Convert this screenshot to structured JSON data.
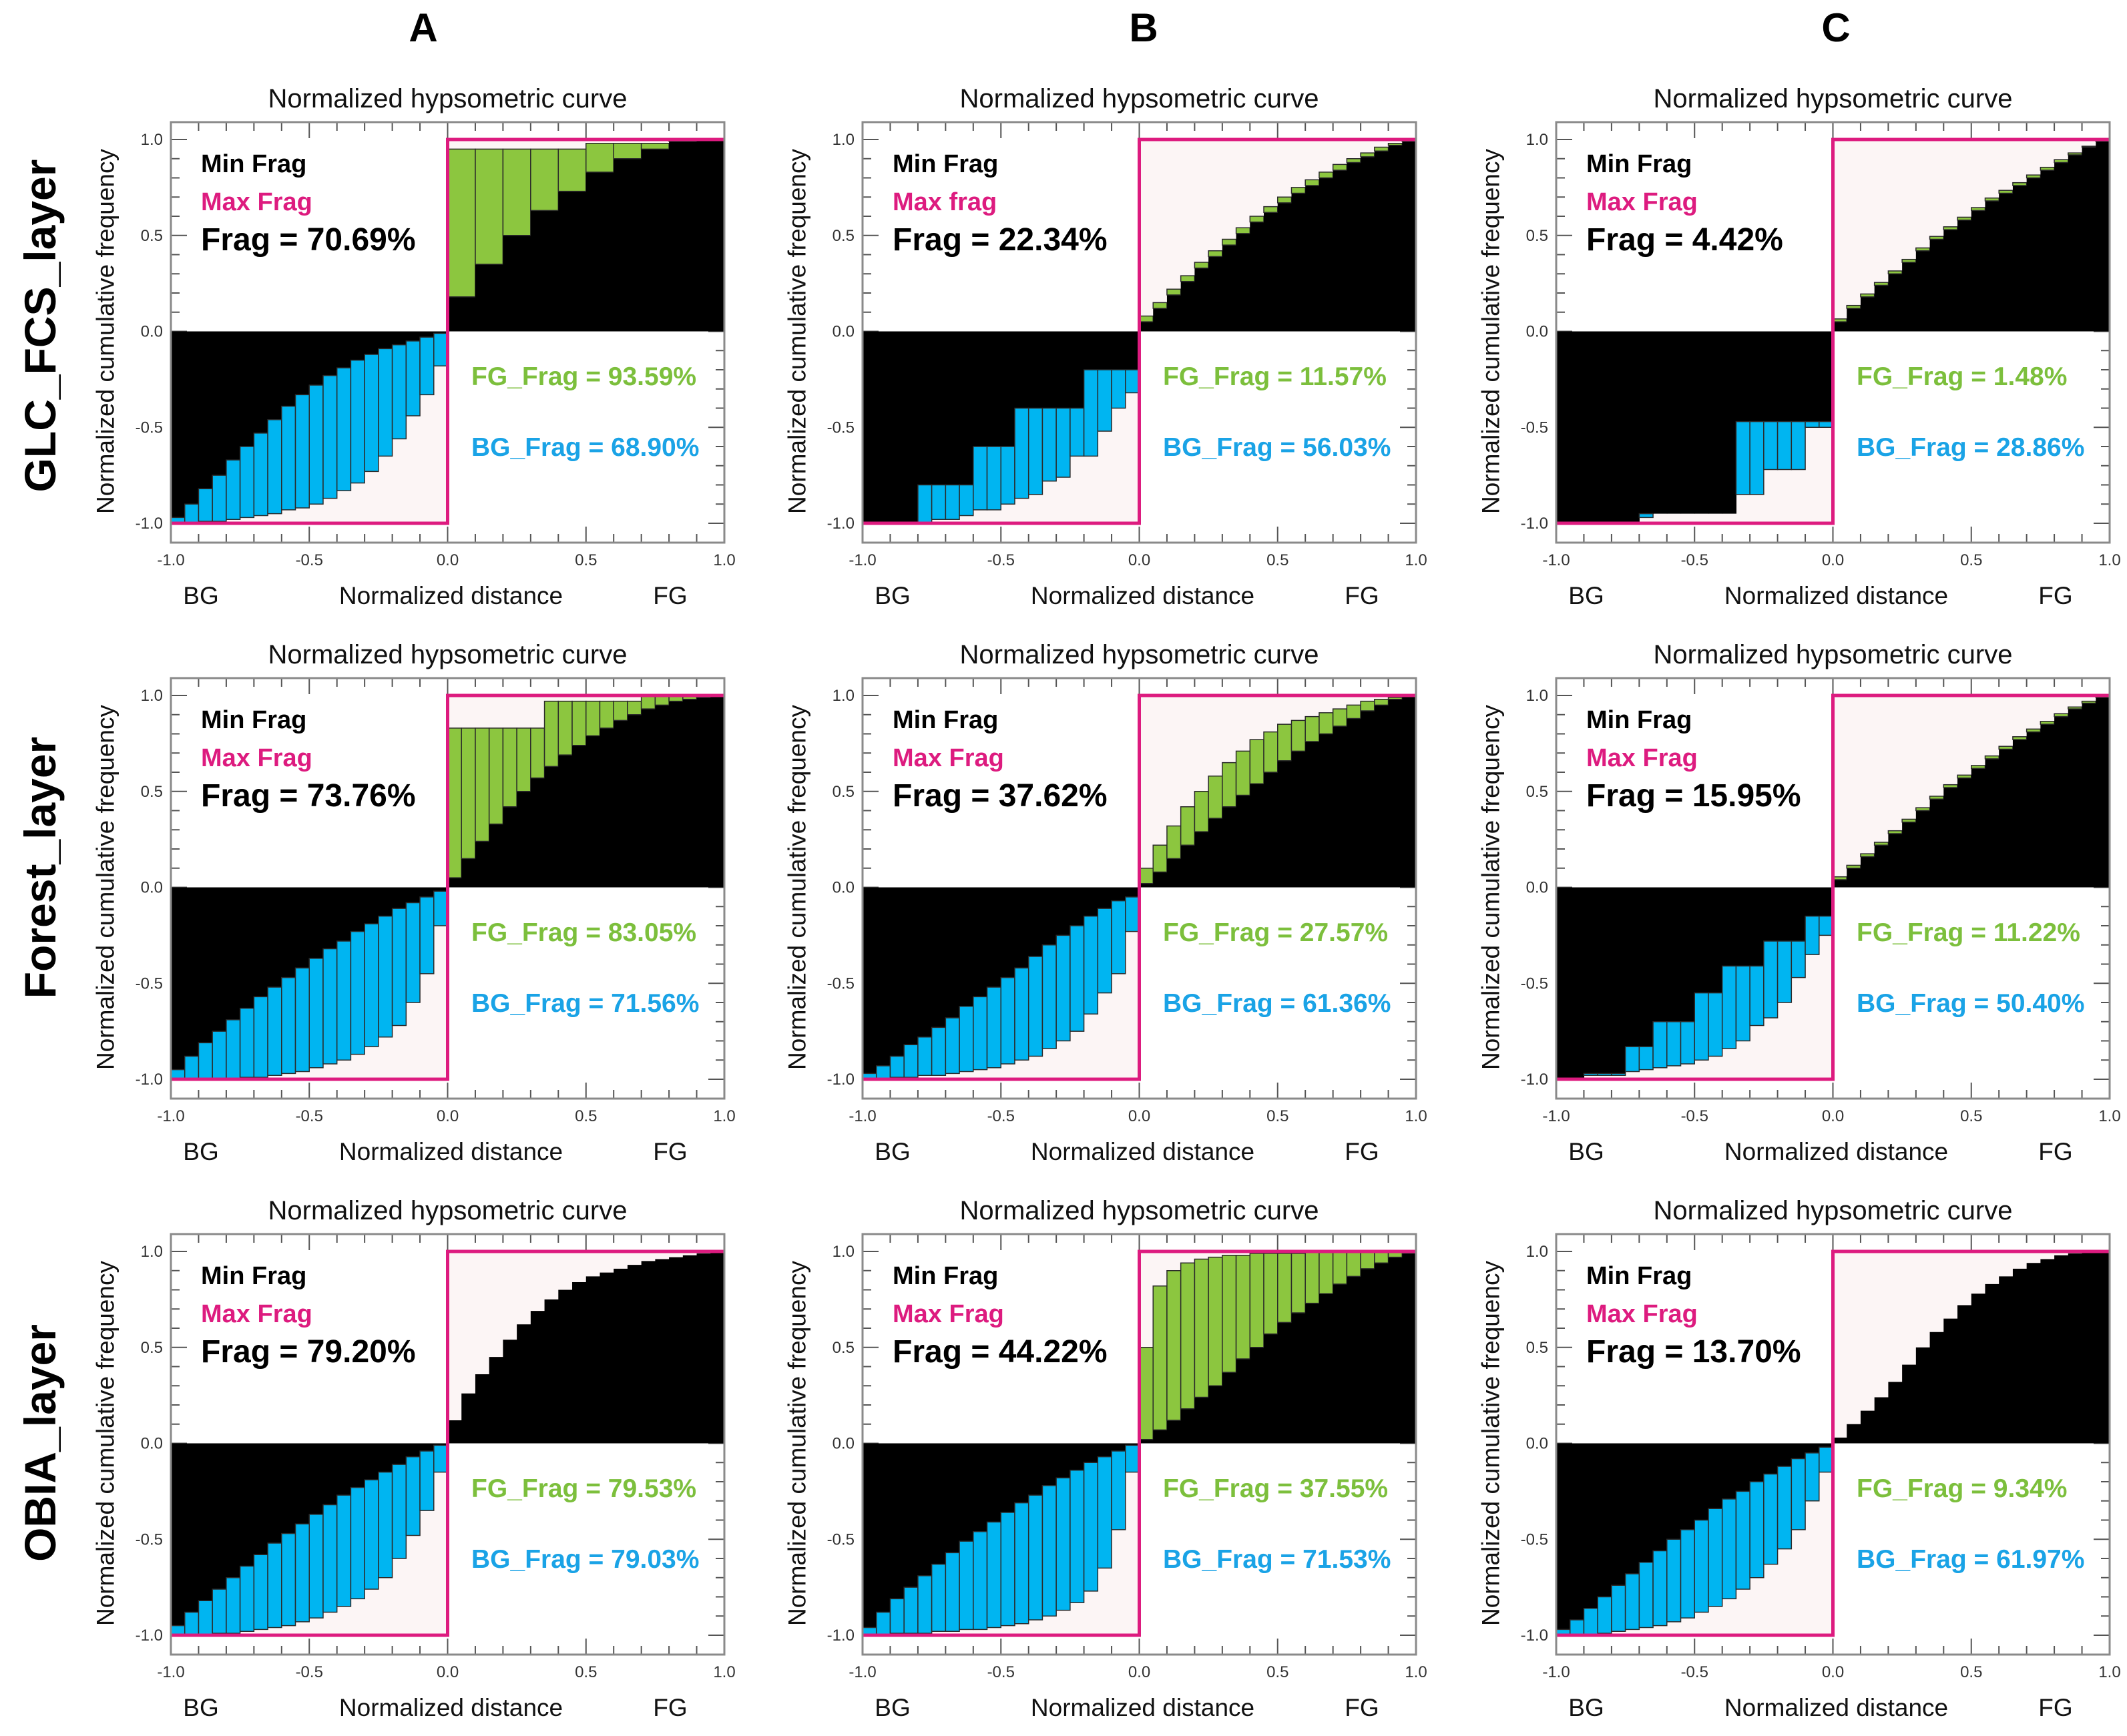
{
  "columns": [
    "A",
    "B",
    "C"
  ],
  "rows": [
    "GLC_FCS_layer",
    "Forest_layer",
    "OBIA_layer"
  ],
  "colors": {
    "fg_frag": "#8cc63f",
    "bg_frag": "#00b5f1",
    "max_frag": "#dd1b7f",
    "min_frag": "#000000",
    "fg_text": "#7cbf3c",
    "bg_text": "#1aa3e6",
    "gap": "#fcf5f5"
  },
  "chart_data": [
    {
      "type": "bar",
      "row": 0,
      "column": 0,
      "title": "Normalized hypsometric curve",
      "xlabel": "Normalized distance",
      "ylabel": "Normalized cumulative frequency",
      "x_end_labels": [
        "BG",
        "FG"
      ],
      "xlim": [
        -1,
        1
      ],
      "ylim": [
        -1,
        1
      ],
      "xticks": [
        "-1.0",
        "-0.5",
        "0.0",
        "0.5",
        "1.0"
      ],
      "yticks": [
        "-1.0",
        "-0.5",
        "0.0",
        "0.5",
        "1.0"
      ],
      "legend": {
        "min": "Min Frag",
        "max": "Max Frag"
      },
      "frag": "Frag = 70.69%",
      "fg_frag": "FG_Frag = 93.59%",
      "bg_frag": "BG_Frag = 68.90%",
      "fg": {
        "ref": [
          0.18,
          0.35,
          0.5,
          0.63,
          0.73,
          0.83,
          0.9,
          0.95,
          0.99,
          1
        ],
        "obs": [
          0.95,
          0.95,
          0.95,
          0.95,
          0.95,
          0.98,
          0.98,
          0.98,
          1,
          1
        ]
      },
      "bg": {
        "ref": [
          -0.97,
          -0.9,
          -0.82,
          -0.75,
          -0.67,
          -0.6,
          -0.53,
          -0.46,
          -0.39,
          -0.33,
          -0.28,
          -0.23,
          -0.19,
          -0.15,
          -0.12,
          -0.09,
          -0.07,
          -0.05,
          -0.03,
          -0.01
        ],
        "obs": [
          -1,
          -1,
          -0.99,
          -0.99,
          -0.98,
          -0.97,
          -0.96,
          -0.95,
          -0.93,
          -0.92,
          -0.9,
          -0.87,
          -0.83,
          -0.79,
          -0.73,
          -0.65,
          -0.56,
          -0.44,
          -0.33,
          -0.18
        ]
      }
    },
    {
      "type": "bar",
      "row": 0,
      "column": 1,
      "title": "Normalized hypsometric curve",
      "xlabel": "Normalized distance",
      "ylabel": "Normalized cumulative frequency",
      "x_end_labels": [
        "BG",
        "FG"
      ],
      "xlim": [
        -1,
        1
      ],
      "ylim": [
        -1,
        1
      ],
      "xticks": [
        "-1.0",
        "-0.5",
        "0.0",
        "0.5",
        "1.0"
      ],
      "yticks": [
        "-1.0",
        "-0.5",
        "0.0",
        "0.5",
        "1.0"
      ],
      "legend": {
        "min": "Min Frag",
        "max": "Max frag"
      },
      "frag": "Frag = 22.34%",
      "fg_frag": "FG_Frag = 11.57%",
      "bg_frag": "BG_Frag = 56.03%",
      "fg": {
        "ref": [
          0.05,
          0.12,
          0.19,
          0.26,
          0.33,
          0.39,
          0.45,
          0.51,
          0.57,
          0.62,
          0.67,
          0.72,
          0.76,
          0.8,
          0.84,
          0.88,
          0.91,
          0.94,
          0.97,
          0.99
        ],
        "obs": [
          0.08,
          0.15,
          0.22,
          0.29,
          0.36,
          0.42,
          0.48,
          0.54,
          0.6,
          0.65,
          0.7,
          0.75,
          0.79,
          0.83,
          0.87,
          0.9,
          0.93,
          0.96,
          0.98,
          1
        ]
      },
      "bg": {
        "ref": [
          -1,
          -1,
          -1,
          -1,
          -0.8,
          -0.8,
          -0.8,
          -0.8,
          -0.6,
          -0.6,
          -0.6,
          -0.4,
          -0.4,
          -0.4,
          -0.4,
          -0.4,
          -0.2,
          -0.2,
          -0.2,
          -0.2
        ],
        "obs": [
          -1,
          -1,
          -1,
          -1,
          -1,
          -0.98,
          -0.98,
          -0.96,
          -0.93,
          -0.93,
          -0.9,
          -0.87,
          -0.85,
          -0.78,
          -0.76,
          -0.65,
          -0.65,
          -0.52,
          -0.4,
          -0.32
        ]
      }
    },
    {
      "type": "bar",
      "row": 0,
      "column": 2,
      "title": "Normalized hypsometric curve",
      "xlabel": "Normalized distance",
      "ylabel": "Normalized cumulative frequency",
      "x_end_labels": [
        "BG",
        "FG"
      ],
      "xlim": [
        -1,
        1
      ],
      "ylim": [
        -1,
        1
      ],
      "xticks": [
        "-1.0",
        "-0.5",
        "0.0",
        "0.5",
        "1.0"
      ],
      "yticks": [
        "-1.0",
        "-0.5",
        "0.0",
        "0.5",
        "1.0"
      ],
      "legend": {
        "min": "Min Frag",
        "max": "Max Frag"
      },
      "frag": "Frag = 4.42%",
      "fg_frag": "FG_Frag = 1.48%",
      "bg_frag": "BG_Frag = 28.86%",
      "fg": {
        "ref": [
          0.05,
          0.12,
          0.18,
          0.24,
          0.3,
          0.36,
          0.42,
          0.48,
          0.53,
          0.58,
          0.63,
          0.68,
          0.72,
          0.76,
          0.8,
          0.84,
          0.88,
          0.92,
          0.96,
          0.99
        ],
        "obs": [
          0.065,
          0.135,
          0.195,
          0.255,
          0.315,
          0.375,
          0.435,
          0.495,
          0.545,
          0.595,
          0.645,
          0.695,
          0.735,
          0.775,
          0.815,
          0.855,
          0.895,
          0.93,
          0.965,
          1
        ]
      },
      "bg": {
        "ref": [
          -1,
          -1,
          -1,
          -1,
          -1,
          -1,
          -0.95,
          -0.95,
          -0.95,
          -0.95,
          -0.95,
          -0.95,
          -0.95,
          -0.47,
          -0.47,
          -0.47,
          -0.47,
          -0.47,
          -0.47,
          -0.47
        ],
        "obs": [
          -1,
          -1,
          -1,
          -1,
          -1,
          -1,
          -0.97,
          -0.95,
          -0.95,
          -0.95,
          -0.95,
          -0.95,
          -0.95,
          -0.85,
          -0.85,
          -0.72,
          -0.72,
          -0.72,
          -0.5,
          -0.5
        ]
      }
    },
    {
      "type": "bar",
      "row": 1,
      "column": 0,
      "title": "Normalized hypsometric curve",
      "xlabel": "Normalized distance",
      "ylabel": "Normalized cumulative frequency",
      "x_end_labels": [
        "BG",
        "FG"
      ],
      "xlim": [
        -1,
        1
      ],
      "ylim": [
        -1,
        1
      ],
      "xticks": [
        "-1.0",
        "-0.5",
        "0.0",
        "0.5",
        "1.0"
      ],
      "yticks": [
        "-1.0",
        "-0.5",
        "0.0",
        "0.5",
        "1.0"
      ],
      "legend": {
        "min": "Min Frag",
        "max": "Max Frag"
      },
      "frag": "Frag = 73.76%",
      "fg_frag": "FG_Frag = 83.05%",
      "bg_frag": "BG_Frag = 71.56%",
      "fg": {
        "ref": [
          0.05,
          0.15,
          0.24,
          0.33,
          0.42,
          0.5,
          0.57,
          0.63,
          0.69,
          0.74,
          0.79,
          0.83,
          0.87,
          0.9,
          0.93,
          0.95,
          0.97,
          0.98,
          0.99,
          1
        ],
        "obs": [
          0.83,
          0.83,
          0.83,
          0.83,
          0.83,
          0.83,
          0.83,
          0.97,
          0.97,
          0.97,
          0.97,
          0.97,
          0.97,
          0.97,
          1,
          1,
          1,
          1,
          1,
          1
        ]
      },
      "bg": {
        "ref": [
          -0.95,
          -0.88,
          -0.81,
          -0.75,
          -0.69,
          -0.63,
          -0.57,
          -0.52,
          -0.47,
          -0.42,
          -0.37,
          -0.32,
          -0.28,
          -0.23,
          -0.19,
          -0.15,
          -0.11,
          -0.08,
          -0.05,
          -0.02
        ],
        "obs": [
          -1,
          -1,
          -1,
          -1,
          -1,
          -0.99,
          -0.99,
          -0.98,
          -0.97,
          -0.96,
          -0.94,
          -0.92,
          -0.9,
          -0.87,
          -0.83,
          -0.78,
          -0.72,
          -0.6,
          -0.45,
          -0.2
        ]
      }
    },
    {
      "type": "bar",
      "row": 1,
      "column": 1,
      "title": "Normalized hypsometric curve",
      "xlabel": "Normalized distance",
      "ylabel": "Normalized cumulative frequency",
      "x_end_labels": [
        "BG",
        "FG"
      ],
      "xlim": [
        -1,
        1
      ],
      "ylim": [
        -1,
        1
      ],
      "xticks": [
        "-1.0",
        "-0.5",
        "0.0",
        "0.5",
        "1.0"
      ],
      "yticks": [
        "-1.0",
        "-0.5",
        "0.0",
        "0.5",
        "1.0"
      ],
      "legend": {
        "min": "Min Frag",
        "max": "Max Frag"
      },
      "frag": "Frag = 37.62%",
      "fg_frag": "FG_Frag = 27.57%",
      "bg_frag": "BG_Frag = 61.36%",
      "fg": {
        "ref": [
          0.02,
          0.08,
          0.15,
          0.22,
          0.29,
          0.36,
          0.42,
          0.48,
          0.54,
          0.6,
          0.66,
          0.71,
          0.76,
          0.8,
          0.84,
          0.88,
          0.92,
          0.95,
          0.98,
          1
        ],
        "obs": [
          0.1,
          0.22,
          0.32,
          0.42,
          0.5,
          0.58,
          0.65,
          0.71,
          0.77,
          0.81,
          0.85,
          0.87,
          0.89,
          0.91,
          0.93,
          0.95,
          0.97,
          0.98,
          0.99,
          1
        ]
      },
      "bg": {
        "ref": [
          -0.97,
          -0.93,
          -0.88,
          -0.82,
          -0.78,
          -0.73,
          -0.68,
          -0.62,
          -0.57,
          -0.52,
          -0.47,
          -0.42,
          -0.36,
          -0.3,
          -0.25,
          -0.2,
          -0.15,
          -0.11,
          -0.07,
          -0.05
        ],
        "obs": [
          -1,
          -1,
          -0.99,
          -0.99,
          -0.98,
          -0.98,
          -0.97,
          -0.96,
          -0.95,
          -0.94,
          -0.92,
          -0.9,
          -0.88,
          -0.84,
          -0.8,
          -0.75,
          -0.66,
          -0.55,
          -0.45,
          -0.23
        ]
      }
    },
    {
      "type": "bar",
      "row": 1,
      "column": 2,
      "title": "Normalized hypsometric curve",
      "xlabel": "Normalized distance",
      "ylabel": "Normalized cumulative frequency",
      "x_end_labels": [
        "BG",
        "FG"
      ],
      "xlim": [
        -1,
        1
      ],
      "ylim": [
        -1,
        1
      ],
      "xticks": [
        "-1.0",
        "-0.5",
        "0.0",
        "0.5",
        "1.0"
      ],
      "yticks": [
        "-1.0",
        "-0.5",
        "0.0",
        "0.5",
        "1.0"
      ],
      "legend": {
        "min": "Min Frag",
        "max": "Max Frag"
      },
      "frag": "Frag = 15.95%",
      "fg_frag": "FG_Frag = 11.22%",
      "bg_frag": "BG_Frag = 50.40%",
      "fg": {
        "ref": [
          0.04,
          0.1,
          0.16,
          0.22,
          0.28,
          0.34,
          0.4,
          0.46,
          0.52,
          0.57,
          0.62,
          0.67,
          0.72,
          0.77,
          0.81,
          0.85,
          0.89,
          0.93,
          0.96,
          0.99
        ],
        "obs": [
          0.055,
          0.115,
          0.175,
          0.235,
          0.295,
          0.355,
          0.415,
          0.475,
          0.535,
          0.585,
          0.635,
          0.685,
          0.735,
          0.785,
          0.825,
          0.865,
          0.905,
          0.94,
          0.97,
          1
        ]
      },
      "bg": {
        "ref": [
          -1,
          -1,
          -0.97,
          -0.97,
          -0.97,
          -0.83,
          -0.83,
          -0.7,
          -0.7,
          -0.7,
          -0.55,
          -0.55,
          -0.41,
          -0.41,
          -0.41,
          -0.28,
          -0.28,
          -0.28,
          -0.15,
          -0.15
        ],
        "obs": [
          -1,
          -1,
          -0.98,
          -0.98,
          -0.98,
          -0.96,
          -0.95,
          -0.94,
          -0.93,
          -0.92,
          -0.9,
          -0.88,
          -0.84,
          -0.8,
          -0.72,
          -0.68,
          -0.6,
          -0.47,
          -0.35,
          -0.25
        ]
      }
    },
    {
      "type": "bar",
      "row": 2,
      "column": 0,
      "title": "Normalized hypsometric curve",
      "xlabel": "Normalized distance",
      "ylabel": "Normalized cumulative frequency",
      "x_end_labels": [
        "BG",
        "FG"
      ],
      "xlim": [
        -1,
        1
      ],
      "ylim": [
        -1,
        1
      ],
      "xticks": [
        "-1.0",
        "-0.5",
        "0.0",
        "0.5",
        "1.0"
      ],
      "yticks": [
        "-1.0",
        "-0.5",
        "0.0",
        "0.5",
        "1.0"
      ],
      "legend": {
        "min": "Min Frag",
        "max": "Max Frag"
      },
      "frag": "Frag = 79.20%",
      "fg_frag": "FG_Frag = 79.53%",
      "bg_frag": "BG_Frag = 79.03%",
      "fg": {
        "ref": [
          0.12,
          0.26,
          0.36,
          0.45,
          0.54,
          0.62,
          0.69,
          0.75,
          0.8,
          0.84,
          0.87,
          0.89,
          0.91,
          0.93,
          0.95,
          0.96,
          0.97,
          0.98,
          0.99,
          1
        ],
        "obs": [
          0.12,
          0.26,
          0.36,
          0.45,
          0.54,
          0.62,
          0.69,
          0.75,
          0.8,
          0.84,
          0.87,
          0.89,
          0.91,
          0.93,
          0.95,
          0.96,
          0.97,
          0.98,
          0.99,
          1
        ]
      },
      "bg": {
        "ref": [
          -0.95,
          -0.88,
          -0.82,
          -0.76,
          -0.7,
          -0.64,
          -0.58,
          -0.52,
          -0.47,
          -0.42,
          -0.37,
          -0.32,
          -0.27,
          -0.23,
          -0.19,
          -0.15,
          -0.11,
          -0.07,
          -0.04,
          -0.01
        ],
        "obs": [
          -1,
          -1,
          -1,
          -0.99,
          -0.99,
          -0.98,
          -0.97,
          -0.96,
          -0.95,
          -0.93,
          -0.91,
          -0.88,
          -0.85,
          -0.81,
          -0.76,
          -0.7,
          -0.6,
          -0.48,
          -0.35,
          -0.15
        ]
      }
    },
    {
      "type": "bar",
      "row": 2,
      "column": 1,
      "title": "Normalized hypsometric curve",
      "xlabel": "Normalized distance",
      "ylabel": "Normalized cumulative frequency",
      "x_end_labels": [
        "BG",
        "FG"
      ],
      "xlim": [
        -1,
        1
      ],
      "ylim": [
        -1,
        1
      ],
      "xticks": [
        "-1.0",
        "-0.5",
        "0.0",
        "0.5",
        "1.0"
      ],
      "yticks": [
        "-1.0",
        "-0.5",
        "0.0",
        "0.5",
        "1.0"
      ],
      "legend": {
        "min": "Min Frag",
        "max": "Max Frag"
      },
      "frag": "Frag = 44.22%",
      "fg_frag": "FG_Frag = 37.55%",
      "bg_frag": "BG_Frag = 71.53%",
      "fg": {
        "ref": [
          0.02,
          0.07,
          0.12,
          0.18,
          0.24,
          0.3,
          0.37,
          0.44,
          0.5,
          0.57,
          0.63,
          0.68,
          0.73,
          0.78,
          0.83,
          0.87,
          0.91,
          0.94,
          0.97,
          0.99
        ],
        "obs": [
          0.5,
          0.82,
          0.9,
          0.94,
          0.96,
          0.97,
          0.98,
          0.98,
          0.99,
          0.99,
          0.99,
          0.99,
          0.995,
          0.995,
          1,
          1,
          1,
          1,
          1,
          1
        ]
      },
      "bg": {
        "ref": [
          -0.96,
          -0.88,
          -0.81,
          -0.75,
          -0.69,
          -0.63,
          -0.57,
          -0.51,
          -0.46,
          -0.41,
          -0.36,
          -0.31,
          -0.27,
          -0.22,
          -0.18,
          -0.14,
          -0.1,
          -0.07,
          -0.04,
          -0.01
        ],
        "obs": [
          -1,
          -1,
          -0.99,
          -0.99,
          -0.99,
          -0.98,
          -0.98,
          -0.97,
          -0.97,
          -0.96,
          -0.95,
          -0.94,
          -0.92,
          -0.9,
          -0.87,
          -0.83,
          -0.77,
          -0.65,
          -0.45,
          -0.15
        ]
      }
    },
    {
      "type": "bar",
      "row": 2,
      "column": 2,
      "title": "Normalized hypsometric curve",
      "xlabel": "Normalized distance",
      "ylabel": "Normalized cumulative frequency",
      "x_end_labels": [
        "BG",
        "FG"
      ],
      "xlim": [
        -1,
        1
      ],
      "ylim": [
        -1,
        1
      ],
      "xticks": [
        "-1.0",
        "-0.5",
        "0.0",
        "0.5",
        "1.0"
      ],
      "yticks": [
        "-1.0",
        "-0.5",
        "0.0",
        "0.5",
        "1.0"
      ],
      "legend": {
        "min": "Min Frag",
        "max": "Max Frag"
      },
      "frag": "Frag = 13.70%",
      "fg_frag": "FG_Frag = 9.34%",
      "bg_frag": "BG_Frag = 61.97%",
      "fg": {
        "ref": [
          0.03,
          0.1,
          0.17,
          0.24,
          0.32,
          0.41,
          0.5,
          0.58,
          0.65,
          0.72,
          0.78,
          0.83,
          0.87,
          0.91,
          0.94,
          0.96,
          0.98,
          0.99,
          1,
          1
        ],
        "obs": [
          0.03,
          0.1,
          0.17,
          0.24,
          0.32,
          0.41,
          0.5,
          0.58,
          0.65,
          0.72,
          0.78,
          0.83,
          0.87,
          0.91,
          0.94,
          0.96,
          0.98,
          0.99,
          1,
          1
        ]
      },
      "bg": {
        "ref": [
          -0.97,
          -0.92,
          -0.86,
          -0.8,
          -0.74,
          -0.68,
          -0.62,
          -0.56,
          -0.5,
          -0.45,
          -0.4,
          -0.34,
          -0.29,
          -0.25,
          -0.2,
          -0.16,
          -0.12,
          -0.08,
          -0.05,
          -0.02
        ],
        "obs": [
          -1,
          -1,
          -1,
          -0.99,
          -0.98,
          -0.97,
          -0.96,
          -0.95,
          -0.93,
          -0.91,
          -0.88,
          -0.85,
          -0.81,
          -0.76,
          -0.7,
          -0.63,
          -0.55,
          -0.45,
          -0.3,
          -0.15
        ]
      }
    }
  ]
}
